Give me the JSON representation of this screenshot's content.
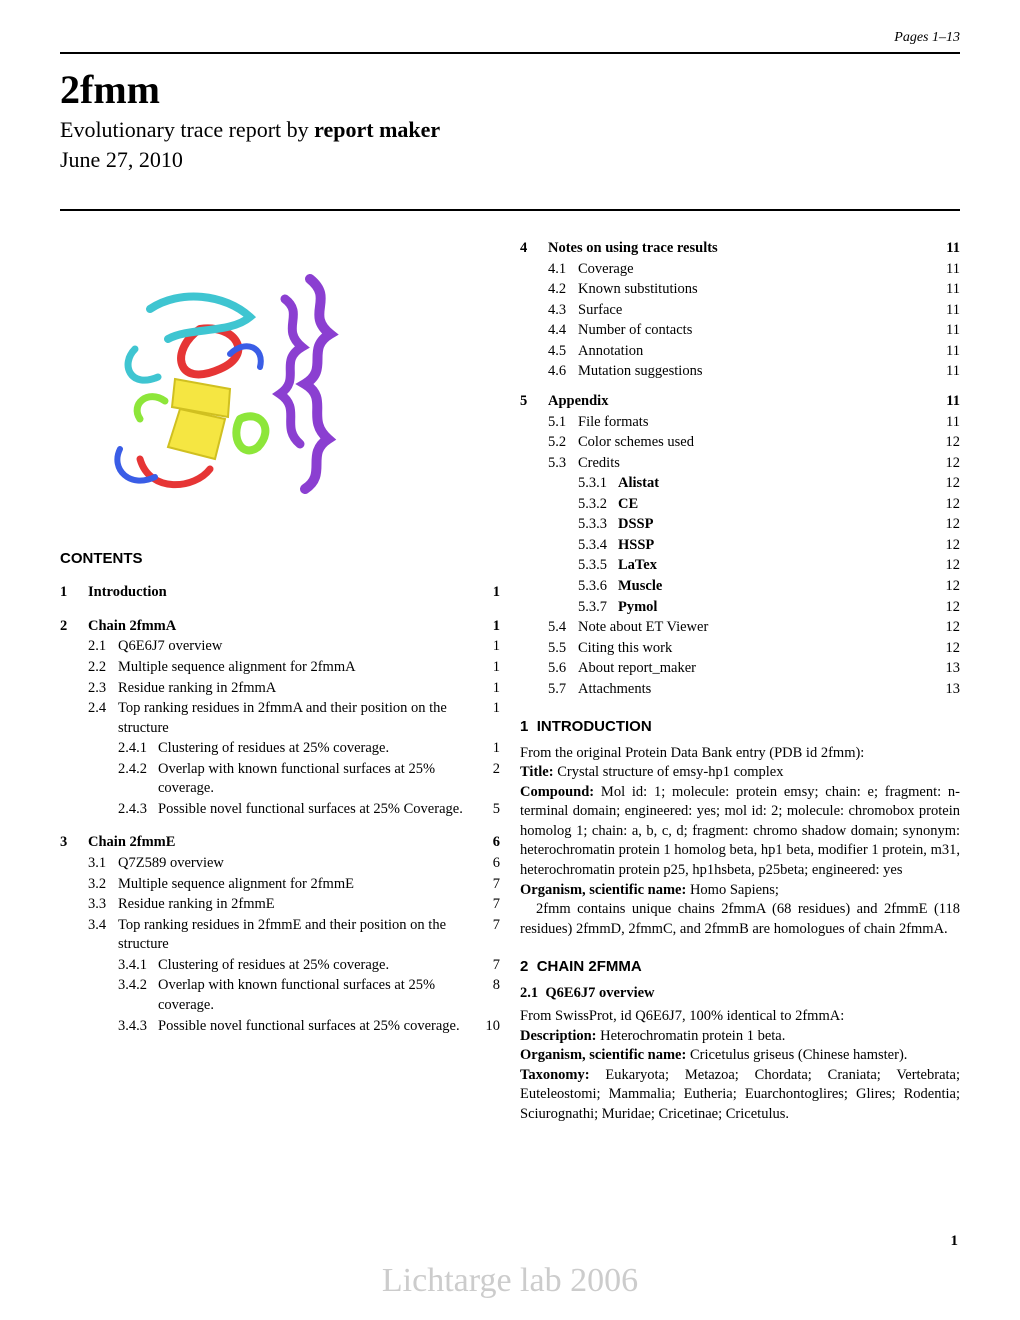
{
  "header": {
    "pages": "Pages 1–13"
  },
  "title": "2fmm",
  "subtitle_plain": "Evolutionary trace report by ",
  "subtitle_bold": "report maker",
  "date": "June 27, 2010",
  "contents_label": "CONTENTS",
  "toc_left": [
    {
      "type": "section",
      "num": "1",
      "text": "Introduction",
      "page": "1"
    },
    {
      "type": "section",
      "num": "2",
      "text": "Chain 2fmmA",
      "page": "1"
    },
    {
      "type": "sub",
      "num": "2.1",
      "text": "Q6E6J7 overview",
      "page": "1"
    },
    {
      "type": "sub",
      "num": "2.2",
      "text": "Multiple sequence alignment for 2fmmA",
      "page": "1"
    },
    {
      "type": "sub",
      "num": "2.3",
      "text": "Residue ranking in 2fmmA",
      "page": "1"
    },
    {
      "type": "sub",
      "num": "2.4",
      "text": "Top ranking residues in 2fmmA and their position on the structure",
      "page": "1"
    },
    {
      "type": "subsub",
      "num": "2.4.1",
      "text": "Clustering of residues at 25% coverage.",
      "page": "1"
    },
    {
      "type": "subsub",
      "num": "2.4.2",
      "text": "Overlap with known functional surfaces at 25% coverage.",
      "page": "2"
    },
    {
      "type": "subsub",
      "num": "2.4.3",
      "text": "Possible novel functional surfaces at 25% Coverage.",
      "page": "5"
    },
    {
      "type": "section",
      "num": "3",
      "text": "Chain 2fmmE",
      "page": "6"
    },
    {
      "type": "sub",
      "num": "3.1",
      "text": "Q7Z589 overview",
      "page": "6"
    },
    {
      "type": "sub",
      "num": "3.2",
      "text": "Multiple sequence alignment for 2fmmE",
      "page": "7"
    },
    {
      "type": "sub",
      "num": "3.3",
      "text": "Residue ranking in 2fmmE",
      "page": "7"
    },
    {
      "type": "sub",
      "num": "3.4",
      "text": "Top ranking residues in 2fmmE and their position on the structure",
      "page": "7"
    },
    {
      "type": "subsub",
      "num": "3.4.1",
      "text": "Clustering of residues at 25% coverage.",
      "page": "7"
    },
    {
      "type": "subsub",
      "num": "3.4.2",
      "text": "Overlap with known functional surfaces at 25% coverage.",
      "page": "8"
    },
    {
      "type": "subsub",
      "num": "3.4.3",
      "text": "Possible novel functional surfaces at 25% coverage.",
      "page": "10"
    }
  ],
  "toc_right": [
    {
      "type": "section",
      "num": "4",
      "text": "Notes on using trace results",
      "page": "11"
    },
    {
      "type": "sub",
      "num": "4.1",
      "text": "Coverage",
      "page": "11"
    },
    {
      "type": "sub",
      "num": "4.2",
      "text": "Known substitutions",
      "page": "11"
    },
    {
      "type": "sub",
      "num": "4.3",
      "text": "Surface",
      "page": "11"
    },
    {
      "type": "sub",
      "num": "4.4",
      "text": "Number of contacts",
      "page": "11"
    },
    {
      "type": "sub",
      "num": "4.5",
      "text": "Annotation",
      "page": "11"
    },
    {
      "type": "sub",
      "num": "4.6",
      "text": "Mutation suggestions",
      "page": "11"
    },
    {
      "type": "section",
      "num": "5",
      "text": "Appendix",
      "page": "11"
    },
    {
      "type": "sub",
      "num": "5.1",
      "text": "File formats",
      "page": "11"
    },
    {
      "type": "sub",
      "num": "5.2",
      "text": "Color schemes used",
      "page": "12"
    },
    {
      "type": "sub",
      "num": "5.3",
      "text": "Credits",
      "page": "12"
    },
    {
      "type": "subsub",
      "num": "5.3.1",
      "text": "Alistat",
      "bold": true,
      "page": "12"
    },
    {
      "type": "subsub",
      "num": "5.3.2",
      "text": "CE",
      "bold": true,
      "page": "12"
    },
    {
      "type": "subsub",
      "num": "5.3.3",
      "text": "DSSP",
      "bold": true,
      "page": "12"
    },
    {
      "type": "subsub",
      "num": "5.3.4",
      "text": "HSSP",
      "bold": true,
      "page": "12"
    },
    {
      "type": "subsub",
      "num": "5.3.5",
      "text": "LaTex",
      "bold": true,
      "page": "12"
    },
    {
      "type": "subsub",
      "num": "5.3.6",
      "text": "Muscle",
      "bold": true,
      "page": "12"
    },
    {
      "type": "subsub",
      "num": "5.3.7",
      "text": "Pymol",
      "bold": true,
      "page": "12"
    },
    {
      "type": "sub",
      "num": "5.4",
      "text": "Note about ET Viewer",
      "page": "12"
    },
    {
      "type": "sub",
      "num": "5.5",
      "text": "Citing this work",
      "page": "12"
    },
    {
      "type": "sub",
      "num": "5.6",
      "text": "About report_maker",
      "page": "13"
    },
    {
      "type": "sub",
      "num": "5.7",
      "text": "Attachments",
      "page": "13"
    }
  ],
  "intro": {
    "heading_num": "1",
    "heading": "INTRODUCTION",
    "p1": "From the original Protein Data Bank entry (PDB id 2fmm):",
    "title_label": "Title:",
    "title_val": " Crystal structure of emsy-hp1 complex",
    "compound_label": "Compound:",
    "compound_val": " Mol id: 1; molecule: protein emsy; chain: e; fragment: n-terminal domain; engineered: yes; mol id: 2; molecule: chromobox protein homolog 1; chain: a, b, c, d; fragment: chromo shadow domain; synonym: heterochromatin protein 1 homolog beta, hp1 beta, modifier 1 protein, m31, heterochromatin protein p25, hp1hsbeta, p25beta; engineered: yes",
    "organism_label": "Organism, scientific name:",
    "organism_val": " Homo Sapiens;",
    "p2": "2fmm contains unique chains 2fmmA (68 residues) and 2fmmE (118 residues) 2fmmD, 2fmmC, and 2fmmB are homologues of chain 2fmmA."
  },
  "chain2": {
    "heading_num": "2",
    "heading": "CHAIN 2FMMA",
    "sub_num": "2.1",
    "sub_heading": "Q6E6J7 overview",
    "p1": "From SwissProt, id Q6E6J7, 100% identical to 2fmmA:",
    "desc_label": "Description:",
    "desc_val": " Heterochromatin protein 1 beta.",
    "org_label": "Organism, scientific name:",
    "org_val": " Cricetulus griseus (Chinese hamster).",
    "tax_label": "Taxonomy:",
    "tax_val": " Eukaryota; Metazoa; Chordata; Craniata; Vertebrata; Euteleostomi; Mammalia; Eutheria; Euarchontoglires; Glires; Rodentia; Sciurognathi; Muridae; Cricetinae; Cricetulus."
  },
  "watermark": "Lichtarge lab 2006",
  "page_number": "1",
  "colors": {
    "text": "#000000",
    "bg": "#ffffff",
    "watermark": "#cccccc",
    "protein": {
      "purple": "#8b3fd1",
      "cyan": "#3fc5d1",
      "yellow": "#f5e642",
      "red": "#e63535",
      "lime": "#8de63a",
      "blue": "#3a5de6"
    }
  }
}
